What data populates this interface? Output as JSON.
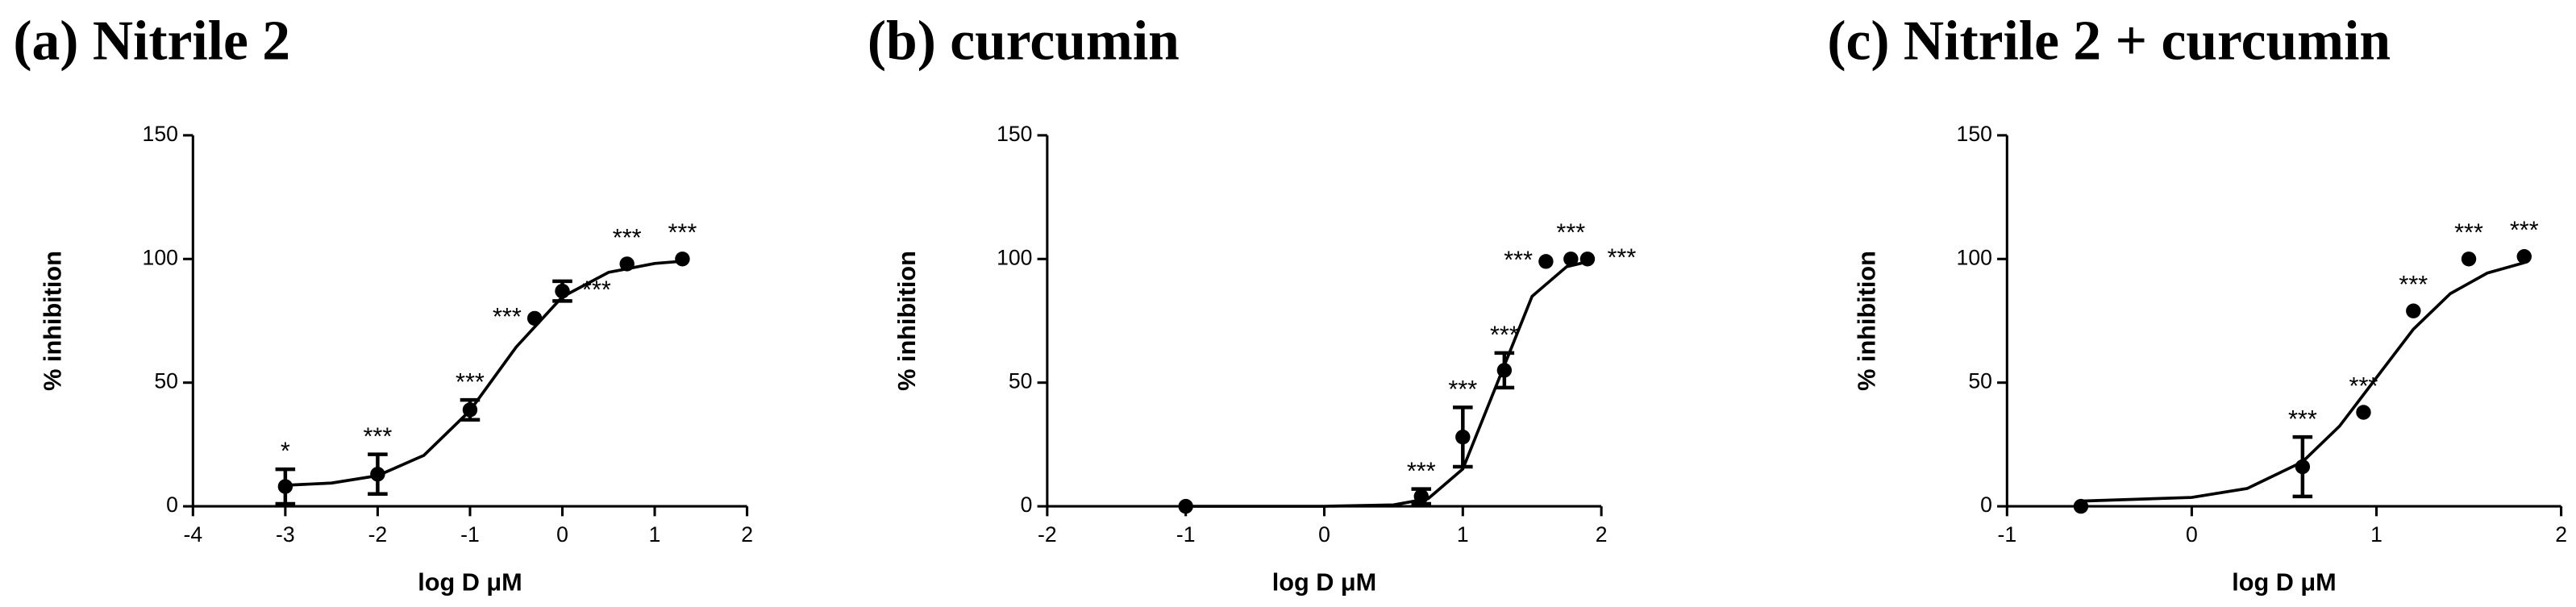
{
  "chart_data": [
    {
      "type": "scatter",
      "title": "(a) Nitrile 2",
      "xlabel": "log D μM",
      "ylabel": "% inhibition",
      "x": [
        -3,
        -2,
        -1,
        -0.3,
        0,
        0.7,
        1.3
      ],
      "values": [
        8,
        13,
        39,
        76,
        87,
        98,
        100
      ],
      "errors": [
        7,
        8,
        4,
        null,
        4,
        null,
        null
      ],
      "annotations": [
        "*",
        "***",
        "***",
        "***",
        "***",
        "***",
        "***"
      ],
      "fit": {
        "x": [
          -3,
          -2.5,
          -2,
          -1.5,
          -1,
          -0.5,
          0,
          0.5,
          1,
          1.3
        ],
        "values": [
          8.5,
          9.4,
          12.4,
          20.6,
          38.7,
          64.4,
          84.7,
          94.6,
          98.2,
          99.1
        ]
      },
      "color": "#000000",
      "xlim": [
        -4,
        2
      ],
      "xticks": [
        -4,
        -3,
        -2,
        -1,
        0,
        1,
        2
      ],
      "ylim": [
        0,
        150
      ],
      "yticks": [
        0,
        50,
        100,
        150
      ]
    },
    {
      "type": "scatter",
      "title": "(b) curcumin",
      "xlabel": "log D μM",
      "ylabel": "% inhibition",
      "x": [
        -1,
        0.7,
        1,
        1.3,
        1.6,
        1.78,
        1.9
      ],
      "values": [
        0,
        4,
        28,
        55,
        99,
        100,
        100
      ],
      "errors": [
        null,
        3,
        12,
        7,
        null,
        null,
        null
      ],
      "annotations": [
        null,
        "***",
        "***",
        "***",
        "***",
        "***",
        "***"
      ],
      "fit": {
        "x": [
          -1,
          -0.5,
          0,
          0.5,
          0.75,
          1,
          1.25,
          1.5,
          1.75,
          1.9
        ],
        "values": [
          0,
          0,
          0.02,
          0.56,
          3.1,
          15.1,
          50,
          84.9,
          96.9,
          98.9
        ]
      },
      "color": "#000000",
      "xlim": [
        -2,
        2
      ],
      "xticks": [
        -2,
        -1,
        0,
        1,
        2
      ],
      "ylim": [
        0,
        150
      ],
      "yticks": [
        0,
        50,
        100,
        150
      ]
    },
    {
      "type": "scatter",
      "title": "(c) Nitrile 2 + curcumin",
      "xlabel": "log D μM",
      "ylabel": "% inhibition",
      "x": [
        -0.6,
        0.6,
        0.93,
        1.2,
        1.5,
        1.8
      ],
      "values": [
        0,
        16,
        38,
        79,
        100,
        101
      ],
      "errors": [
        null,
        12,
        null,
        null,
        null,
        null
      ],
      "annotations": [
        null,
        "***",
        "***",
        "***",
        "***",
        "***"
      ],
      "fit": {
        "x": [
          -0.6,
          0,
          0.3,
          0.6,
          0.8,
          1,
          1.2,
          1.4,
          1.6,
          1.8
        ],
        "values": [
          2.1,
          3.6,
          7.2,
          18,
          32.4,
          52,
          71.6,
          86,
          94.3,
          98.5
        ]
      },
      "color": "#000000",
      "xlim": [
        -1,
        2
      ],
      "xticks": [
        -1,
        0,
        1,
        2
      ],
      "ylim": [
        0,
        150
      ],
      "yticks": [
        0,
        50,
        100,
        150
      ]
    }
  ]
}
